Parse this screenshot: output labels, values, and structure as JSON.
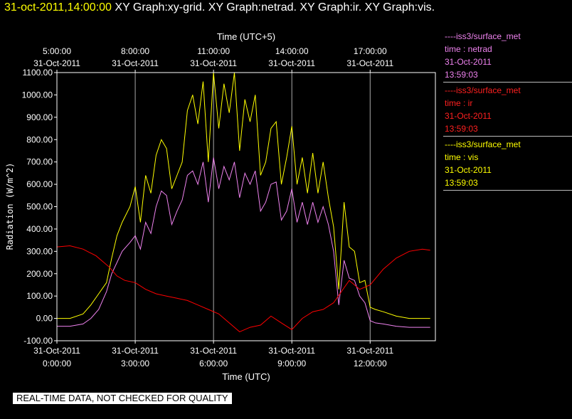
{
  "header": {
    "timestamp": "31-oct-2011,14:00:00",
    "graphs": "XY Graph:xy-grid.  XY Graph:netrad.  XY Graph:ir.  XY Graph:vis."
  },
  "legend": [
    {
      "source": "----iss3/surface_met",
      "var": "time : netrad",
      "date": "31-Oct-2011",
      "time": "13:59:03",
      "color": "#ee82ee"
    },
    {
      "source": "----iss3/surface_met",
      "var": "time : ir",
      "date": "31-Oct-2011",
      "time": "13:59:03",
      "color": "#ff0000"
    },
    {
      "source": "----iss3/surface_met",
      "var": "time : vis",
      "date": "31-Oct-2011",
      "time": "13:59:03",
      "color": "#ffff00"
    }
  ],
  "banner": "REAL-TIME DATA, NOT CHECKED FOR QUALITY",
  "chart_data": {
    "type": "line",
    "xlabel": "Time (UTC)",
    "xlabel_top": "Time (UTC+5)",
    "ylabel": "Radiation (W/m^2)",
    "xlim": [
      0,
      14.5
    ],
    "ylim": [
      -100,
      1100
    ],
    "grid": "vertical",
    "yticks": [
      "-100.00",
      "0.00",
      "100.00",
      "200.00",
      "300.00",
      "400.00",
      "500.00",
      "600.00",
      "700.00",
      "800.00",
      "900.00",
      "1000.00",
      "1100.00"
    ],
    "xticks_bottom": [
      {
        "x": 0,
        "date": "31-Oct-2011",
        "time": "0:00:00"
      },
      {
        "x": 3,
        "date": "31-Oct-2011",
        "time": "3:00:00"
      },
      {
        "x": 6,
        "date": "31-Oct-2011",
        "time": "6:00:00"
      },
      {
        "x": 9,
        "date": "31-Oct-2011",
        "time": "9:00:00"
      },
      {
        "x": 12,
        "date": "31-Oct-2011",
        "time": "12:00:00"
      }
    ],
    "xticks_top": [
      {
        "x": 0,
        "time": "5:00:00",
        "date": "31-Oct-2011"
      },
      {
        "x": 3,
        "time": "8:00:00",
        "date": "31-Oct-2011"
      },
      {
        "x": 6,
        "time": "11:00:00",
        "date": "31-Oct-2011"
      },
      {
        "x": 9,
        "time": "14:00:00",
        "date": "31-Oct-2011"
      },
      {
        "x": 12,
        "time": "17:00:00",
        "date": "31-Oct-2011"
      }
    ],
    "series": [
      {
        "name": "time : vis",
        "color": "#ffff00",
        "x": [
          0,
          0.5,
          1,
          1.3,
          1.6,
          1.9,
          2.1,
          2.3,
          2.5,
          2.8,
          3,
          3.2,
          3.4,
          3.6,
          3.8,
          4.0,
          4.2,
          4.4,
          4.6,
          4.8,
          5.0,
          5.2,
          5.4,
          5.6,
          5.8,
          6.0,
          6.2,
          6.4,
          6.6,
          6.8,
          7.0,
          7.2,
          7.4,
          7.6,
          7.8,
          8.0,
          8.2,
          8.4,
          8.6,
          8.8,
          9.0,
          9.2,
          9.4,
          9.6,
          9.8,
          10.0,
          10.2,
          10.4,
          10.6,
          10.8,
          11.0,
          11.2,
          11.4,
          11.6,
          11.8,
          12.0,
          12.2,
          12.5,
          13,
          13.5,
          14,
          14.3
        ],
        "y": [
          0,
          0,
          20,
          60,
          110,
          160,
          270,
          370,
          430,
          500,
          590,
          430,
          640,
          560,
          730,
          800,
          760,
          580,
          640,
          700,
          930,
          1000,
          870,
          1060,
          700,
          1100,
          850,
          1050,
          920,
          1100,
          750,
          980,
          880,
          1000,
          640,
          700,
          850,
          880,
          600,
          720,
          860,
          600,
          720,
          560,
          740,
          560,
          700,
          540,
          410,
          130,
          520,
          320,
          300,
          160,
          170,
          50,
          40,
          30,
          10,
          0,
          0,
          0
        ]
      },
      {
        "name": "time : netrad",
        "color": "#ee82ee",
        "x": [
          0,
          0.5,
          1,
          1.3,
          1.6,
          1.9,
          2.1,
          2.3,
          2.5,
          2.8,
          3,
          3.2,
          3.4,
          3.6,
          3.8,
          4.0,
          4.2,
          4.4,
          4.6,
          4.8,
          5.0,
          5.2,
          5.4,
          5.6,
          5.8,
          6.0,
          6.2,
          6.4,
          6.6,
          6.8,
          7.0,
          7.2,
          7.4,
          7.6,
          7.8,
          8.0,
          8.2,
          8.4,
          8.6,
          8.8,
          9.0,
          9.2,
          9.4,
          9.6,
          9.8,
          10.0,
          10.2,
          10.4,
          10.6,
          10.8,
          11.0,
          11.2,
          11.4,
          11.6,
          11.8,
          12.0,
          12.2,
          12.5,
          13,
          13.5,
          14,
          14.3
        ],
        "y": [
          -35,
          -35,
          -25,
          0,
          40,
          120,
          200,
          250,
          300,
          340,
          370,
          310,
          430,
          380,
          500,
          570,
          550,
          420,
          480,
          530,
          640,
          660,
          600,
          700,
          520,
          720,
          580,
          680,
          620,
          700,
          540,
          650,
          600,
          660,
          480,
          520,
          600,
          610,
          440,
          480,
          580,
          430,
          520,
          420,
          520,
          430,
          500,
          420,
          300,
          60,
          260,
          180,
          170,
          100,
          70,
          -10,
          -20,
          -25,
          -35,
          -40,
          -40,
          -40
        ]
      },
      {
        "name": "time : ir",
        "color": "#ff0000",
        "x": [
          0,
          0.5,
          1,
          1.5,
          2,
          2.3,
          2.6,
          3,
          3.4,
          3.8,
          4.2,
          4.6,
          5,
          5.4,
          5.8,
          6.2,
          6.6,
          7,
          7.4,
          7.8,
          8.2,
          8.6,
          9,
          9.4,
          9.8,
          10.2,
          10.6,
          10.9,
          11.2,
          11.6,
          12,
          12.5,
          13,
          13.5,
          14,
          14.3
        ],
        "y": [
          320,
          325,
          310,
          280,
          230,
          190,
          170,
          160,
          130,
          110,
          100,
          90,
          80,
          60,
          40,
          20,
          -20,
          -60,
          -40,
          -30,
          10,
          -20,
          -50,
          0,
          30,
          40,
          70,
          120,
          170,
          130,
          150,
          220,
          270,
          300,
          310,
          305
        ]
      }
    ]
  }
}
